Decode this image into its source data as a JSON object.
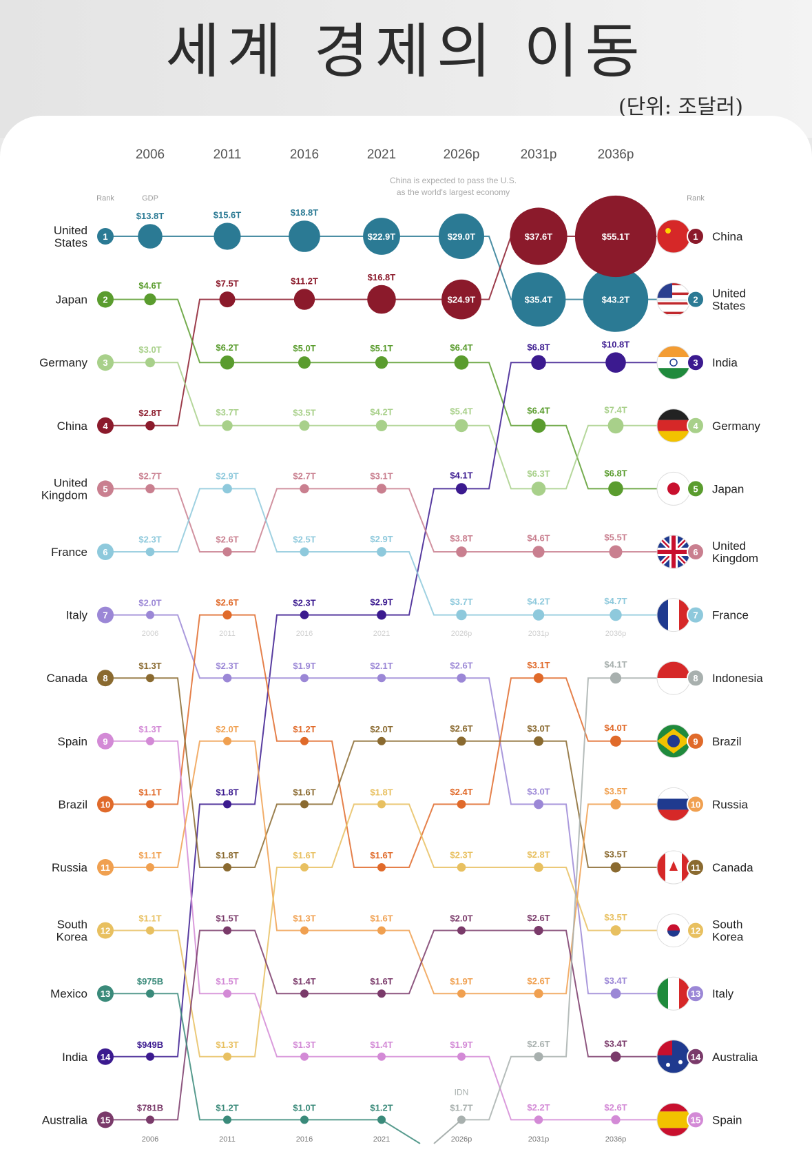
{
  "title": "세계 경제의 이동",
  "unit_label": "(단위: 조달러)",
  "chart_data": {
    "type": "bump",
    "title": "세계 경제의 이동",
    "unit": "(단위: 조달러)",
    "years": [
      "2006",
      "2011",
      "2016",
      "2021",
      "2026p",
      "2031p",
      "2036p"
    ],
    "bottom_years": [
      "2006",
      "2011",
      "2016",
      "2021",
      "2026p",
      "2031p",
      "2036p"
    ],
    "ghost_years": [
      "2006",
      "2011",
      "2016",
      "2021",
      "2026p",
      "2031p",
      "2036p"
    ],
    "rank_label": "Rank",
    "gdp_label": "GDP",
    "right_rank_label": "Rank",
    "annotation": [
      "China is expected to pass the U.S.",
      "as the world's largest economy"
    ],
    "idn_label": "IDN",
    "left_countries": [
      {
        "rank": "1",
        "name": [
          "United",
          "States"
        ]
      },
      {
        "rank": "2",
        "name": [
          "Japan"
        ]
      },
      {
        "rank": "3",
        "name": [
          "Germany"
        ]
      },
      {
        "rank": "4",
        "name": [
          "China"
        ]
      },
      {
        "rank": "5",
        "name": [
          "United",
          "Kingdom"
        ]
      },
      {
        "rank": "6",
        "name": [
          "France"
        ]
      },
      {
        "rank": "7",
        "name": [
          "Italy"
        ]
      },
      {
        "rank": "8",
        "name": [
          "Canada"
        ]
      },
      {
        "rank": "9",
        "name": [
          "Spain"
        ]
      },
      {
        "rank": "10",
        "name": [
          "Brazil"
        ]
      },
      {
        "rank": "11",
        "name": [
          "Russia"
        ]
      },
      {
        "rank": "12",
        "name": [
          "South",
          "Korea"
        ]
      },
      {
        "rank": "13",
        "name": [
          "Mexico"
        ]
      },
      {
        "rank": "14",
        "name": [
          "India"
        ]
      },
      {
        "rank": "15",
        "name": [
          "Australia"
        ]
      }
    ],
    "right_countries": [
      {
        "rank": "1",
        "name": [
          "China"
        ],
        "flag": "china-flag-icon"
      },
      {
        "rank": "2",
        "name": [
          "United",
          "States"
        ],
        "flag": "usa-flag-icon"
      },
      {
        "rank": "3",
        "name": [
          "India"
        ],
        "flag": "india-flag-icon"
      },
      {
        "rank": "4",
        "name": [
          "Germany"
        ],
        "flag": "germany-flag-icon"
      },
      {
        "rank": "5",
        "name": [
          "Japan"
        ],
        "flag": "japan-flag-icon"
      },
      {
        "rank": "6",
        "name": [
          "United",
          "Kingdom"
        ],
        "flag": "uk-flag-icon"
      },
      {
        "rank": "7",
        "name": [
          "France"
        ],
        "flag": "france-flag-icon"
      },
      {
        "rank": "8",
        "name": [
          "Indonesia"
        ],
        "flag": "indonesia-flag-icon"
      },
      {
        "rank": "9",
        "name": [
          "Brazil"
        ],
        "flag": "brazil-flag-icon"
      },
      {
        "rank": "10",
        "name": [
          "Russia"
        ],
        "flag": "russia-flag-icon"
      },
      {
        "rank": "11",
        "name": [
          "Canada"
        ],
        "flag": "canada-flag-icon"
      },
      {
        "rank": "12",
        "name": [
          "South",
          "Korea"
        ],
        "flag": "korea-flag-icon"
      },
      {
        "rank": "13",
        "name": [
          "Italy"
        ],
        "flag": "italy-flag-icon"
      },
      {
        "rank": "14",
        "name": [
          "Australia"
        ],
        "flag": "australia-flag-icon"
      },
      {
        "rank": "15",
        "name": [
          "Spain"
        ],
        "flag": "spain-flag-icon"
      }
    ],
    "series": [
      {
        "name": "United States",
        "color": "#2b7a94",
        "ranks": [
          1,
          1,
          1,
          1,
          1,
          2,
          2
        ],
        "gdp": [
          13.8,
          15.6,
          18.8,
          22.9,
          29.0,
          35.4,
          43.2
        ],
        "labels": [
          "$13.8T",
          "$15.6T",
          "$18.8T",
          "$22.9T",
          "$29.0T",
          "$35.4T",
          "$43.2T"
        ]
      },
      {
        "name": "China",
        "color": "#8b1a2b",
        "ranks": [
          4,
          2,
          2,
          2,
          2,
          1,
          1
        ],
        "gdp": [
          2.8,
          7.5,
          11.2,
          16.8,
          24.9,
          37.6,
          55.1
        ],
        "labels": [
          "$2.8T",
          "$7.5T",
          "$11.2T",
          "$16.8T",
          "$24.9T",
          "$37.6T",
          "$55.1T"
        ]
      },
      {
        "name": "Japan",
        "color": "#5a9c2e",
        "ranks": [
          2,
          3,
          3,
          3,
          3,
          4,
          5
        ],
        "gdp": [
          4.6,
          6.2,
          5.0,
          5.1,
          6.4,
          6.4,
          6.8
        ],
        "labels": [
          "$4.6T",
          "$6.2T",
          "$5.0T",
          "$5.1T",
          "$6.4T",
          "$6.4T",
          "$6.8T"
        ]
      },
      {
        "name": "Germany",
        "color": "#a8d08a",
        "ranks": [
          3,
          4,
          4,
          4,
          4,
          5,
          4
        ],
        "gdp": [
          3.0,
          3.7,
          3.5,
          4.2,
          5.4,
          6.3,
          7.4
        ],
        "labels": [
          "$3.0T",
          "$3.7T",
          "$3.5T",
          "$4.2T",
          "$5.4T",
          "$6.3T",
          "$7.4T"
        ]
      },
      {
        "name": "India",
        "color": "#3b1a8f",
        "ranks": [
          14,
          10,
          7,
          7,
          5,
          3,
          3
        ],
        "gdp": [
          0.949,
          1.8,
          2.3,
          2.9,
          4.1,
          6.8,
          10.8
        ],
        "labels": [
          "$949B",
          "$1.8T",
          "$2.3T",
          "$2.9T",
          "$4.1T",
          "$6.8T",
          "$10.8T"
        ]
      },
      {
        "name": "United Kingdom",
        "color": "#c97f8f",
        "ranks": [
          5,
          6,
          5,
          5,
          6,
          6,
          6
        ],
        "gdp": [
          2.7,
          2.6,
          2.7,
          3.1,
          3.8,
          4.6,
          5.5
        ],
        "labels": [
          "$2.7T",
          "$2.6T",
          "$2.7T",
          "$3.1T",
          "$3.8T",
          "$4.6T",
          "$5.5T"
        ]
      },
      {
        "name": "France",
        "color": "#8ec9dc",
        "ranks": [
          6,
          5,
          6,
          6,
          7,
          7,
          7
        ],
        "gdp": [
          2.3,
          2.9,
          2.5,
          2.9,
          3.7,
          4.2,
          4.7
        ],
        "labels": [
          "$2.3T",
          "$2.9T",
          "$2.5T",
          "$2.9T",
          "$3.7T",
          "$4.2T",
          "$4.7T"
        ]
      },
      {
        "name": "Italy",
        "color": "#9b87d6",
        "ranks": [
          7,
          8,
          8,
          8,
          8,
          10,
          13
        ],
        "gdp": [
          2.0,
          2.3,
          1.9,
          2.1,
          2.6,
          3.0,
          3.4
        ],
        "labels": [
          "$2.0T",
          "$2.3T",
          "$1.9T",
          "$2.1T",
          "$2.6T",
          "$3.0T",
          "$3.4T"
        ]
      },
      {
        "name": "Brazil",
        "color": "#e06a2a",
        "ranks": [
          10,
          7,
          9,
          11,
          10,
          8,
          9
        ],
        "gdp": [
          1.1,
          2.6,
          1.2,
          1.6,
          2.4,
          3.1,
          4.0
        ],
        "labels": [
          "$1.1T",
          "$2.6T",
          "$1.2T",
          "$1.6T",
          "$2.4T",
          "$3.1T",
          "$4.0T"
        ]
      },
      {
        "name": "Canada",
        "color": "#8a6a30",
        "ranks": [
          8,
          11,
          10,
          9,
          9,
          9,
          11
        ],
        "gdp": [
          1.3,
          1.8,
          1.6,
          2.0,
          2.6,
          3.0,
          3.5
        ],
        "labels": [
          "$1.3T",
          "$1.8T",
          "$1.6T",
          "$2.0T",
          "$2.6T",
          "$3.0T",
          "$3.5T"
        ]
      },
      {
        "name": "Spain",
        "color": "#d38ad6",
        "ranks": [
          9,
          13,
          14,
          14,
          14,
          15,
          15
        ],
        "gdp": [
          1.3,
          1.5,
          1.3,
          1.4,
          1.9,
          2.2,
          2.6
        ],
        "labels": [
          "$1.3T",
          "$1.5T",
          "$1.3T",
          "$1.4T",
          "$1.9T",
          "$2.2T",
          "$2.6T"
        ]
      },
      {
        "name": "Russia",
        "color": "#f0a050",
        "ranks": [
          11,
          9,
          12,
          12,
          13,
          13,
          10
        ],
        "gdp": [
          1.1,
          2.0,
          1.3,
          1.6,
          1.9,
          2.6,
          3.5
        ],
        "labels": [
          "$1.1T",
          "$2.0T",
          "$1.3T",
          "$1.6T",
          "$1.9T",
          "$2.6T",
          "$3.5T"
        ]
      },
      {
        "name": "South Korea",
        "color": "#e8c060",
        "ranks": [
          12,
          14,
          11,
          10,
          11,
          11,
          12
        ],
        "gdp": [
          1.1,
          1.3,
          1.6,
          1.8,
          2.3,
          2.8,
          3.5
        ],
        "labels": [
          "$1.1T",
          "$1.3T",
          "$1.6T",
          "$1.8T",
          "$2.3T",
          "$2.8T",
          "$3.5T"
        ]
      },
      {
        "name": "Australia",
        "color": "#7a3a6a",
        "ranks": [
          15,
          12,
          13,
          13,
          12,
          12,
          14
        ],
        "gdp": [
          0.781,
          1.5,
          1.4,
          1.6,
          2.0,
          2.6,
          3.4
        ],
        "labels": [
          "$781B",
          "$1.5T",
          "$1.4T",
          "$1.6T",
          "$2.0T",
          "$2.6T",
          "$3.4T"
        ]
      },
      {
        "name": "Mexico",
        "color": "#3a8a7a",
        "ranks": [
          13,
          15,
          15,
          15,
          null,
          null,
          null
        ],
        "gdp": [
          0.975,
          1.2,
          1.0,
          1.2,
          null,
          null,
          null
        ],
        "labels": [
          "$975B",
          "$1.2T",
          "$1.0T",
          "$1.2T",
          null,
          null,
          null
        ]
      },
      {
        "name": "Indonesia",
        "color": "#a8b0ae",
        "ranks": [
          null,
          null,
          null,
          null,
          15,
          14,
          8
        ],
        "gdp": [
          null,
          null,
          null,
          null,
          1.7,
          2.6,
          4.1
        ],
        "labels": [
          null,
          null,
          null,
          null,
          "$1.7T",
          "$2.6T",
          "$4.1T"
        ]
      }
    ]
  }
}
